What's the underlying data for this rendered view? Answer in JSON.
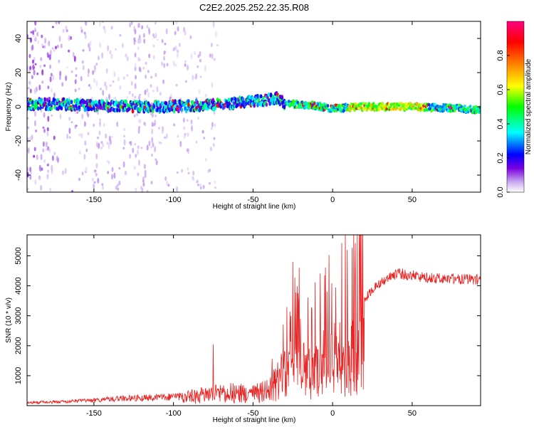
{
  "title": "C2E2.2025.252.22.35.R08",
  "chart_data": [
    {
      "type": "heatmap",
      "name": "spectrogram",
      "xlabel": "Height of straight line (km)",
      "ylabel": "Frequency (Hz)",
      "xlim": [
        -192,
        93
      ],
      "ylim": [
        -50,
        50
      ],
      "xticks": [
        -150,
        -100,
        -50,
        0,
        50
      ],
      "yticks": [
        -40,
        -20,
        0,
        20,
        40
      ],
      "colorbar": {
        "label": "Normalized spectral amplitude",
        "range": [
          0,
          1
        ],
        "ticks": [
          0.0,
          0.2,
          0.4,
          0.6,
          0.8
        ],
        "colors": [
          "#ffffff",
          "#c8a8f0",
          "#7a00e0",
          "#0000ff",
          "#00ffff",
          "#00ff00",
          "#ffff00",
          "#ff8000",
          "#ff0000",
          "#ff0080"
        ]
      },
      "ridge": [
        {
          "x": -170,
          "y": 1.5
        },
        {
          "x": -150,
          "y": 0.5
        },
        {
          "x": -130,
          "y": 0
        },
        {
          "x": -110,
          "y": 0
        },
        {
          "x": -90,
          "y": 0.5
        },
        {
          "x": -70,
          "y": 1.5
        },
        {
          "x": -50,
          "y": 3
        },
        {
          "x": -35,
          "y": 5
        },
        {
          "x": -30,
          "y": 2
        },
        {
          "x": -15,
          "y": 1
        },
        {
          "x": 0,
          "y": -1
        },
        {
          "x": 20,
          "y": 0
        },
        {
          "x": 50,
          "y": 0
        },
        {
          "x": 80,
          "y": -1
        },
        {
          "x": 93,
          "y": -2
        }
      ]
    },
    {
      "type": "line",
      "name": "snr",
      "xlabel": "Height of straight line (km)",
      "ylabel": "SNR (10 * v/v)",
      "xlim": [
        -192,
        93
      ],
      "ylim": [
        0,
        5700
      ],
      "xticks": [
        -150,
        -100,
        -50,
        0,
        50
      ],
      "yticks": [
        1000,
        2000,
        3000,
        4000,
        5000
      ],
      "color": "#e82020",
      "envelope": [
        {
          "x": -192,
          "y": 150
        },
        {
          "x": -170,
          "y": 180
        },
        {
          "x": -150,
          "y": 250
        },
        {
          "x": -130,
          "y": 350
        },
        {
          "x": -110,
          "y": 380
        },
        {
          "x": -95,
          "y": 450
        },
        {
          "x": -80,
          "y": 650
        },
        {
          "x": -65,
          "y": 800
        },
        {
          "x": -50,
          "y": 700
        },
        {
          "x": -40,
          "y": 900
        },
        {
          "x": -32,
          "y": 1800
        },
        {
          "x": -25,
          "y": 2300
        },
        {
          "x": -15,
          "y": 2000
        },
        {
          "x": -5,
          "y": 2600
        },
        {
          "x": 5,
          "y": 2900
        },
        {
          "x": 10,
          "y": 3000
        },
        {
          "x": 20,
          "y": 3700
        },
        {
          "x": 30,
          "y": 4300
        },
        {
          "x": 40,
          "y": 4600
        },
        {
          "x": 60,
          "y": 4450
        },
        {
          "x": 80,
          "y": 4400
        },
        {
          "x": 93,
          "y": 4380
        }
      ],
      "spikes": [
        {
          "x": -75,
          "y": 2050
        },
        {
          "x": -25,
          "y": 4800
        },
        {
          "x": -21,
          "y": 4600
        },
        {
          "x": 8,
          "y": 5700
        },
        {
          "x": 8.8,
          "y": 600
        }
      ]
    }
  ]
}
